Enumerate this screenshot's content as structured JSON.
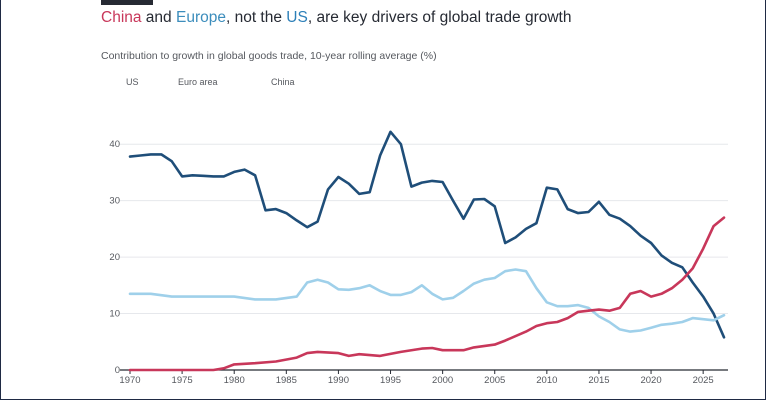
{
  "header": {
    "title_parts": [
      "China",
      " and ",
      "Europe",
      ", not the ",
      "US",
      ", are key drivers of global trade growth"
    ],
    "subtitle": "Contribution to growth in global goods trade, 10-year rolling average (%)"
  },
  "colors": {
    "us": "#1f4e79",
    "euro": "#9fd0ea",
    "china": "#c8375a",
    "grid": "#e6e8ec",
    "axis": "#262a33"
  },
  "chart_data": {
    "type": "line",
    "title": "China and Europe, not the US, are key drivers of global trade growth",
    "subtitle": "Contribution to growth in global goods trade, 10-year rolling average (%)",
    "xlim": [
      1970,
      2027
    ],
    "ylim": [
      0,
      45
    ],
    "x_ticks": [
      1970,
      1975,
      1980,
      1985,
      1990,
      1995,
      2000,
      2005,
      2010,
      2015,
      2020,
      2025
    ],
    "y_ticks": [
      0,
      10,
      20,
      30,
      40
    ],
    "grid": true,
    "legend": "top-left",
    "series": [
      {
        "name": "US",
        "key": "us",
        "points": [
          [
            1970,
            37.8
          ],
          [
            1971,
            38
          ],
          [
            1972,
            38.2
          ],
          [
            1973,
            38.2
          ],
          [
            1974,
            37
          ],
          [
            1975,
            34.3
          ],
          [
            1976,
            34.5
          ],
          [
            1977,
            34.4
          ],
          [
            1978,
            34.3
          ],
          [
            1979,
            34.3
          ],
          [
            1980,
            35.1
          ],
          [
            1981,
            35.5
          ],
          [
            1982,
            34.5
          ],
          [
            1983,
            28.3
          ],
          [
            1984,
            28.5
          ],
          [
            1985,
            27.8
          ],
          [
            1986,
            26.5
          ],
          [
            1987,
            25.3
          ],
          [
            1988,
            26.3
          ],
          [
            1989,
            32
          ],
          [
            1990,
            34.2
          ],
          [
            1991,
            33
          ],
          [
            1992,
            31.2
          ],
          [
            1993,
            31.5
          ],
          [
            1994,
            38
          ],
          [
            1995,
            42.2
          ],
          [
            1996,
            40
          ],
          [
            1997,
            32.5
          ],
          [
            1998,
            33.2
          ],
          [
            1999,
            33.5
          ],
          [
            2000,
            33.3
          ],
          [
            2001,
            30
          ],
          [
            2002,
            26.8
          ],
          [
            2003,
            30.2
          ],
          [
            2004,
            30.3
          ],
          [
            2005,
            29
          ],
          [
            2006,
            22.5
          ],
          [
            2007,
            23.5
          ],
          [
            2008,
            25
          ],
          [
            2009,
            26
          ],
          [
            2010,
            32.3
          ],
          [
            2011,
            32
          ],
          [
            2012,
            28.5
          ],
          [
            2013,
            27.8
          ],
          [
            2014,
            28
          ],
          [
            2015,
            29.8
          ],
          [
            2016,
            27.5
          ],
          [
            2017,
            26.8
          ],
          [
            2018,
            25.5
          ],
          [
            2019,
            23.8
          ],
          [
            2020,
            22.5
          ],
          [
            2021,
            20.3
          ],
          [
            2022,
            19
          ],
          [
            2023,
            18.2
          ],
          [
            2024,
            15.5
          ],
          [
            2025,
            13
          ],
          [
            2026,
            10
          ],
          [
            2027,
            5.8
          ]
        ]
      },
      {
        "name": "Euro area",
        "key": "euro",
        "points": [
          [
            1970,
            13.5
          ],
          [
            1972,
            13.5
          ],
          [
            1974,
            13
          ],
          [
            1976,
            13
          ],
          [
            1978,
            13
          ],
          [
            1980,
            13
          ],
          [
            1982,
            12.5
          ],
          [
            1984,
            12.5
          ],
          [
            1986,
            13
          ],
          [
            1987,
            15.5
          ],
          [
            1988,
            16
          ],
          [
            1989,
            15.5
          ],
          [
            1990,
            14.3
          ],
          [
            1991,
            14.2
          ],
          [
            1992,
            14.5
          ],
          [
            1993,
            15
          ],
          [
            1994,
            14
          ],
          [
            1995,
            13.3
          ],
          [
            1996,
            13.3
          ],
          [
            1997,
            13.8
          ],
          [
            1998,
            15
          ],
          [
            1999,
            13.5
          ],
          [
            2000,
            12.5
          ],
          [
            2001,
            12.8
          ],
          [
            2002,
            14
          ],
          [
            2003,
            15.3
          ],
          [
            2004,
            16
          ],
          [
            2005,
            16.3
          ],
          [
            2006,
            17.5
          ],
          [
            2007,
            17.8
          ],
          [
            2008,
            17.5
          ],
          [
            2009,
            14.5
          ],
          [
            2010,
            12
          ],
          [
            2011,
            11.3
          ],
          [
            2012,
            11.3
          ],
          [
            2013,
            11.5
          ],
          [
            2014,
            11
          ],
          [
            2015,
            9.5
          ],
          [
            2016,
            8.5
          ],
          [
            2017,
            7.2
          ],
          [
            2018,
            6.8
          ],
          [
            2019,
            7
          ],
          [
            2020,
            7.5
          ],
          [
            2021,
            8
          ],
          [
            2022,
            8.2
          ],
          [
            2023,
            8.5
          ],
          [
            2024,
            9.2
          ],
          [
            2025,
            9
          ],
          [
            2026,
            8.8
          ],
          [
            2027,
            9.7
          ]
        ]
      },
      {
        "name": "China",
        "key": "china",
        "points": [
          [
            1970,
            0
          ],
          [
            1978,
            0
          ],
          [
            1979,
            0.3
          ],
          [
            1980,
            1
          ],
          [
            1982,
            1.2
          ],
          [
            1984,
            1.5
          ],
          [
            1986,
            2.2
          ],
          [
            1987,
            3
          ],
          [
            1988,
            3.2
          ],
          [
            1990,
            3
          ],
          [
            1991,
            2.5
          ],
          [
            1992,
            2.8
          ],
          [
            1994,
            2.5
          ],
          [
            1996,
            3.2
          ],
          [
            1998,
            3.8
          ],
          [
            1999,
            3.9
          ],
          [
            2000,
            3.5
          ],
          [
            2002,
            3.5
          ],
          [
            2003,
            4
          ],
          [
            2005,
            4.5
          ],
          [
            2006,
            5.2
          ],
          [
            2008,
            6.8
          ],
          [
            2009,
            7.8
          ],
          [
            2010,
            8.3
          ],
          [
            2011,
            8.5
          ],
          [
            2012,
            9.2
          ],
          [
            2013,
            10.3
          ],
          [
            2014,
            10.5
          ],
          [
            2015,
            10.7
          ],
          [
            2016,
            10.5
          ],
          [
            2017,
            11
          ],
          [
            2018,
            13.5
          ],
          [
            2019,
            14
          ],
          [
            2020,
            13
          ],
          [
            2021,
            13.5
          ],
          [
            2022,
            14.5
          ],
          [
            2023,
            16
          ],
          [
            2024,
            18
          ],
          [
            2025,
            21.5
          ],
          [
            2026,
            25.5
          ],
          [
            2027,
            27
          ]
        ]
      }
    ]
  }
}
